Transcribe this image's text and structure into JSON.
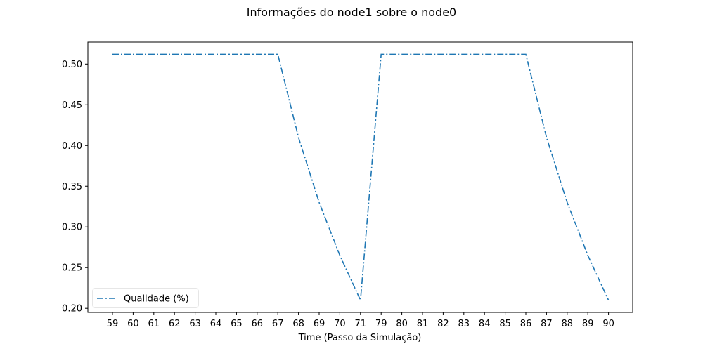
{
  "chart_data": {
    "type": "line",
    "title": "Informações do node1 sobre o node0",
    "xlabel": "Time (Passo da Simulação)",
    "ylabel": "",
    "categories": [
      "59",
      "60",
      "61",
      "62",
      "63",
      "64",
      "65",
      "66",
      "67",
      "68",
      "69",
      "70",
      "71",
      "79",
      "80",
      "81",
      "82",
      "83",
      "84",
      "85",
      "86",
      "87",
      "88",
      "89",
      "90"
    ],
    "series": [
      {
        "name": "Qualidade (%)",
        "color": "#1f77b4",
        "line_style": "dash-dot",
        "values": [
          0.512,
          0.512,
          0.512,
          0.512,
          0.512,
          0.512,
          0.512,
          0.512,
          0.512,
          0.41,
          0.33,
          0.265,
          0.21,
          0.512,
          0.512,
          0.512,
          0.512,
          0.512,
          0.512,
          0.512,
          0.512,
          0.41,
          0.33,
          0.265,
          0.21
        ]
      }
    ],
    "yticks": [
      0.2,
      0.25,
      0.3,
      0.35,
      0.4,
      0.45,
      0.5
    ],
    "ylim": [
      0.195,
      0.527
    ],
    "grid": false,
    "legend_position": "lower-left"
  }
}
